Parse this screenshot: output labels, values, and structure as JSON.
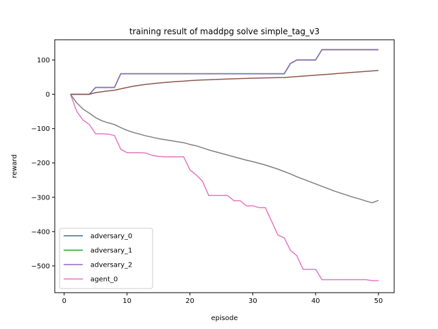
{
  "chart_data": {
    "type": "line",
    "title": "training result of maddpg solve simple_tag_v3",
    "xlabel": "episode",
    "ylabel": "reward",
    "xlim": [
      -1.5,
      52.5
    ],
    "ylim": [
      -578,
      159
    ],
    "xticks": [
      0,
      10,
      20,
      30,
      40,
      50
    ],
    "yticks": [
      -500,
      -400,
      -300,
      -200,
      -100,
      0,
      100
    ],
    "grid": false,
    "legend_position": "lower-left",
    "x": [
      1,
      2,
      3,
      4,
      5,
      6,
      7,
      8,
      9,
      10,
      11,
      12,
      13,
      14,
      15,
      16,
      17,
      18,
      19,
      20,
      21,
      22,
      23,
      24,
      25,
      26,
      27,
      28,
      29,
      30,
      31,
      32,
      33,
      34,
      35,
      36,
      37,
      38,
      39,
      40,
      41,
      42,
      43,
      44,
      45,
      46,
      47,
      48,
      49,
      50
    ],
    "series": [
      {
        "name": "adversary_0",
        "color": "#1f77b4",
        "in_legend": true,
        "values": [
          0,
          0,
          0,
          0,
          20,
          20,
          20,
          20,
          60,
          60,
          60,
          60,
          60,
          60,
          60,
          60,
          60,
          60,
          60,
          60,
          60,
          60,
          60,
          60,
          60,
          60,
          60,
          60,
          60,
          60,
          60,
          60,
          60,
          60,
          60,
          90,
          100,
          100,
          100,
          100,
          130,
          130,
          130,
          130,
          130,
          130,
          130,
          130,
          130,
          130
        ]
      },
      {
        "name": "adversary_1",
        "color": "#2ca02c",
        "in_legend": true,
        "values": [
          0,
          0,
          0,
          0,
          20,
          20,
          20,
          20,
          60,
          60,
          60,
          60,
          60,
          60,
          60,
          60,
          60,
          60,
          60,
          60,
          60,
          60,
          60,
          60,
          60,
          60,
          60,
          60,
          60,
          60,
          60,
          60,
          60,
          60,
          60,
          90,
          100,
          100,
          100,
          100,
          130,
          130,
          130,
          130,
          130,
          130,
          130,
          130,
          130,
          130
        ]
      },
      {
        "name": "adversary_2",
        "color": "#9467bd",
        "in_legend": true,
        "values": [
          0,
          0,
          0,
          0,
          20,
          20,
          20,
          20,
          60,
          60,
          60,
          60,
          60,
          60,
          60,
          60,
          60,
          60,
          60,
          60,
          60,
          60,
          60,
          60,
          60,
          60,
          60,
          60,
          60,
          60,
          60,
          60,
          60,
          60,
          60,
          90,
          100,
          100,
          100,
          100,
          130,
          130,
          130,
          130,
          130,
          130,
          130,
          130,
          130,
          130
        ]
      },
      {
        "name": "agent_0",
        "color": "#e377c2",
        "in_legend": true,
        "values": [
          0,
          -50,
          -75,
          -88,
          -115,
          -115,
          -116,
          -120,
          -160,
          -170,
          -170,
          -170,
          -171,
          -178,
          -181,
          -182,
          -182,
          -182,
          -182,
          -220,
          -235,
          -253,
          -295,
          -295,
          -295,
          -295,
          -310,
          -310,
          -325,
          -325,
          -330,
          -330,
          -370,
          -410,
          -418,
          -455,
          -470,
          -510,
          -510,
          -510,
          -540,
          -540,
          -540,
          -540,
          -540,
          -540,
          -540,
          -540,
          -543,
          -543
        ]
      },
      {
        "color": "#8c564b",
        "in_legend": false,
        "values": [
          0,
          0,
          0,
          0,
          5,
          7.5,
          10,
          12,
          16,
          20,
          23.6,
          26.5,
          29,
          31,
          33,
          34.5,
          36,
          37.5,
          38.5,
          40,
          41,
          41.8,
          42.5,
          43.2,
          44,
          44.6,
          45.2,
          45.8,
          46.3,
          46.8,
          47.3,
          47.8,
          48.2,
          48.6,
          49,
          50.3,
          51.7,
          53.1,
          54.4,
          55.8,
          57.2,
          58.5,
          59.9,
          61.3,
          62.7,
          64.1,
          65.4,
          66.8,
          68.2,
          69.6
        ]
      },
      {
        "color": "#7f7f7f",
        "in_legend": false,
        "values": [
          0,
          -25,
          -43,
          -55,
          -68,
          -77,
          -83,
          -88,
          -97,
          -105,
          -111,
          -116,
          -121,
          -125,
          -129,
          -132,
          -135,
          -138,
          -141,
          -146,
          -150,
          -156,
          -162,
          -167,
          -172,
          -177,
          -182,
          -187,
          -192,
          -196,
          -201,
          -206,
          -212,
          -218,
          -225,
          -232,
          -240,
          -247,
          -254,
          -261,
          -268,
          -275,
          -282,
          -288,
          -294,
          -300,
          -305,
          -311,
          -316,
          -309
        ]
      }
    ]
  }
}
